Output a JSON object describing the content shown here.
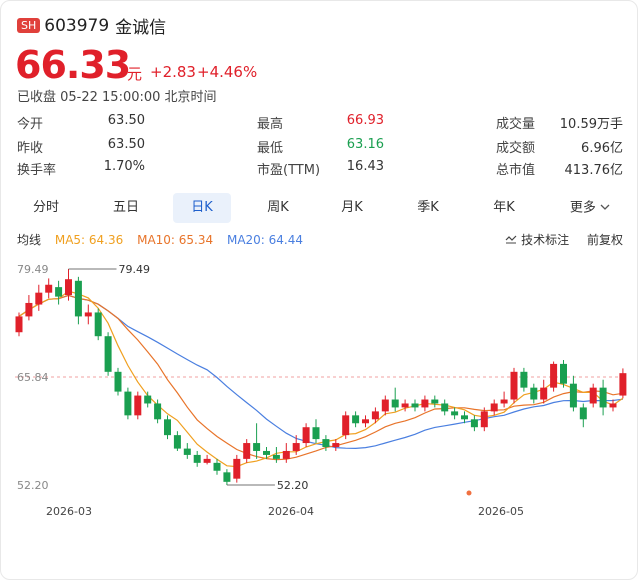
{
  "header": {
    "exchange": "SH",
    "code": "603979",
    "name": "金诚信"
  },
  "quote": {
    "price": "66.33",
    "unit": "元",
    "change": "+2.83",
    "change_pct": "+4.46%",
    "status": "已收盘 05-22 15:00:00 北京时间"
  },
  "stats": [
    {
      "label": "今开",
      "value": "63.50",
      "tone": ""
    },
    {
      "label": "最高",
      "value": "66.93",
      "tone": "red"
    },
    {
      "label": "成交量",
      "value": "10.59万手",
      "tone": ""
    },
    {
      "label": "昨收",
      "value": "63.50",
      "tone": ""
    },
    {
      "label": "最低",
      "value": "63.16",
      "tone": "green"
    },
    {
      "label": "成交额",
      "value": "6.96亿",
      "tone": ""
    },
    {
      "label": "换手率",
      "value": "1.70%",
      "tone": ""
    },
    {
      "label": "市盈(TTM)",
      "value": "16.43",
      "tone": ""
    },
    {
      "label": "总市值",
      "value": "413.76亿",
      "tone": ""
    }
  ],
  "tabs": [
    "分时",
    "五日",
    "日K",
    "周K",
    "月K",
    "季K",
    "年K",
    "更多"
  ],
  "active_tab": "日K",
  "ma": {
    "label": "均线",
    "ma5": "MA5: 64.36",
    "ma10": "MA10: 65.34",
    "ma20": "MA20: 64.44"
  },
  "tools": {
    "indicator": "技术标注",
    "adjust": "前复权"
  },
  "icons": {
    "indicator": "adjust-icon",
    "more": "chevron-down-icon"
  },
  "colors": {
    "up": "#e0202a",
    "down": "#1a9f50",
    "ma5": "#f0a020",
    "ma10": "#e8742a",
    "ma20": "#4a7fe0"
  },
  "chart_data": {
    "type": "candlestick",
    "y_axis_labels": [
      "79.49",
      "65.84",
      "52.20"
    ],
    "ylim": [
      52.2,
      79.49
    ],
    "reference_price": 65.84,
    "x_labels": [
      "2026-03",
      "2026-04",
      "2026-05"
    ],
    "annotations": {
      "high": "79.49",
      "low": "52.20"
    },
    "candles": [
      [
        71.5,
        73.5,
        71.0,
        74.0
      ],
      [
        73.5,
        75.2,
        73.0,
        76.2
      ],
      [
        75.0,
        76.5,
        74.2,
        77.5
      ],
      [
        76.5,
        77.5,
        75.8,
        78.3
      ],
      [
        77.2,
        76.0,
        75.0,
        78.0
      ],
      [
        76.2,
        78.2,
        75.5,
        79.49
      ],
      [
        78.0,
        73.5,
        72.5,
        78.5
      ],
      [
        73.5,
        74.0,
        72.5,
        75.0
      ],
      [
        74.0,
        71.0,
        70.5,
        74.5
      ],
      [
        71.0,
        66.5,
        66.0,
        71.5
      ],
      [
        66.5,
        64.0,
        63.5,
        67.0
      ],
      [
        64.0,
        61.0,
        60.5,
        64.5
      ],
      [
        61.0,
        63.5,
        60.5,
        64.0
      ],
      [
        63.5,
        62.5,
        62.0,
        64.0
      ],
      [
        62.5,
        60.5,
        60.0,
        63.0
      ],
      [
        60.5,
        58.5,
        58.0,
        61.0
      ],
      [
        58.5,
        56.8,
        56.5,
        59.0
      ],
      [
        56.8,
        56.0,
        55.5,
        57.5
      ],
      [
        56.0,
        55.0,
        54.5,
        56.5
      ],
      [
        55.0,
        55.5,
        54.8,
        56.0
      ],
      [
        55.0,
        54.0,
        53.5,
        55.5
      ],
      [
        53.8,
        52.6,
        52.2,
        54.2
      ],
      [
        53.0,
        55.5,
        52.5,
        56.0
      ],
      [
        55.5,
        57.5,
        55.0,
        58.0
      ],
      [
        57.5,
        56.5,
        55.5,
        60.0
      ],
      [
        56.5,
        56.0,
        55.5,
        57.0
      ],
      [
        56.0,
        55.5,
        55.0,
        57.0
      ],
      [
        55.5,
        56.5,
        55.0,
        57.5
      ],
      [
        56.5,
        57.5,
        56.0,
        58.5
      ],
      [
        57.5,
        59.5,
        57.0,
        60.0
      ],
      [
        59.5,
        58.0,
        57.5,
        60.5
      ],
      [
        58.0,
        57.0,
        56.5,
        58.5
      ],
      [
        57.0,
        57.5,
        56.5,
        58.0
      ],
      [
        58.5,
        61.0,
        58.0,
        61.5
      ],
      [
        61.0,
        60.0,
        59.5,
        61.5
      ],
      [
        60.0,
        60.5,
        59.5,
        61.0
      ],
      [
        60.5,
        61.5,
        60.0,
        62.0
      ],
      [
        61.5,
        63.0,
        61.0,
        63.5
      ],
      [
        63.0,
        62.0,
        61.5,
        64.5
      ],
      [
        62.0,
        62.5,
        61.5,
        63.0
      ],
      [
        62.5,
        62.0,
        61.5,
        63.0
      ],
      [
        62.0,
        63.0,
        61.5,
        63.5
      ],
      [
        63.0,
        62.5,
        62.0,
        63.5
      ],
      [
        62.5,
        61.5,
        61.0,
        63.0
      ],
      [
        61.5,
        61.0,
        60.5,
        62.0
      ],
      [
        61.0,
        60.5,
        60.0,
        61.5
      ],
      [
        60.5,
        59.5,
        59.0,
        61.0
      ],
      [
        59.5,
        61.5,
        59.0,
        62.0
      ],
      [
        61.5,
        62.5,
        61.0,
        63.0
      ],
      [
        62.5,
        63.0,
        62.0,
        64.0
      ],
      [
        63.0,
        66.5,
        62.5,
        67.0
      ],
      [
        66.5,
        64.5,
        64.0,
        67.0
      ],
      [
        64.5,
        63.0,
        62.5,
        65.0
      ],
      [
        63.0,
        64.5,
        62.5,
        65.5
      ],
      [
        64.5,
        67.5,
        64.0,
        67.8
      ],
      [
        67.5,
        65.0,
        64.5,
        68.0
      ],
      [
        65.0,
        62.0,
        61.5,
        66.0
      ],
      [
        62.0,
        60.5,
        59.5,
        62.5
      ],
      [
        62.5,
        64.5,
        62.0,
        65.0
      ],
      [
        64.5,
        62.0,
        61.0,
        65.5
      ],
      [
        62.0,
        62.5,
        61.5,
        63.0
      ],
      [
        63.5,
        66.33,
        63.16,
        66.93
      ]
    ]
  }
}
